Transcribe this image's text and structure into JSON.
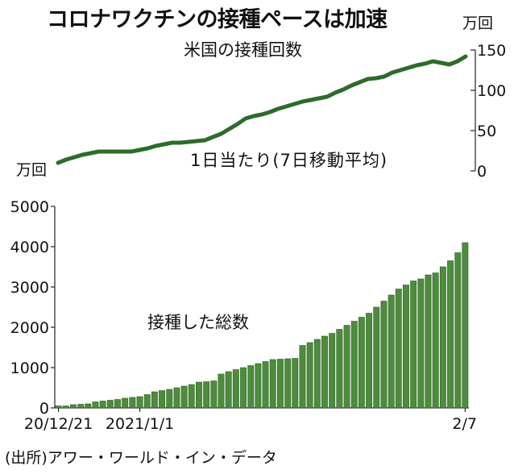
{
  "title": "コロナワクチンの接種ペースは加速",
  "source": "(出所)アワー・ワールド・イン・データ",
  "chart_data": [
    {
      "type": "line",
      "subtitle": "米国の接種回数",
      "note": "1日当たり(7日移動平均)",
      "unit_right": "万回",
      "unit_left": "万回",
      "ylim": [
        0,
        150
      ],
      "yticks": [
        0,
        50,
        100,
        150
      ],
      "color": "#2e6b2a",
      "x": [
        0,
        1,
        2,
        3,
        4,
        5,
        6,
        7,
        8,
        9,
        10,
        11,
        12,
        13,
        14,
        15,
        16,
        17,
        18,
        19,
        20,
        21,
        22,
        23,
        24,
        25,
        26,
        27,
        28,
        29,
        30,
        31,
        32,
        33,
        34,
        35,
        36,
        37,
        38,
        39,
        40,
        41,
        42,
        43,
        44,
        45,
        46,
        47,
        48,
        49,
        50
      ],
      "values": [
        10,
        14,
        17,
        20,
        22,
        24,
        24,
        24,
        24,
        24,
        26,
        28,
        31,
        33,
        35,
        35,
        36,
        37,
        38,
        42,
        46,
        52,
        58,
        65,
        68,
        70,
        73,
        77,
        80,
        83,
        86,
        88,
        90,
        92,
        97,
        101,
        106,
        110,
        114,
        115,
        117,
        122,
        125,
        128,
        131,
        133,
        136,
        134,
        132,
        136,
        142
      ]
    },
    {
      "type": "bar",
      "label": "接種した総数",
      "ylim": [
        0,
        5000
      ],
      "yticks": [
        0,
        1000,
        2000,
        3000,
        4000,
        5000
      ],
      "x_ticks": [
        "20/12/21",
        "2021/1/1",
        "2/7"
      ],
      "color": "#4e8c3d",
      "values": [
        50,
        50,
        80,
        90,
        100,
        150,
        170,
        190,
        210,
        240,
        260,
        280,
        330,
        400,
        430,
        460,
        500,
        540,
        580,
        640,
        650,
        670,
        840,
        900,
        950,
        1000,
        1050,
        1100,
        1150,
        1200,
        1210,
        1220,
        1230,
        1550,
        1620,
        1700,
        1780,
        1850,
        1950,
        2050,
        2150,
        2250,
        2350,
        2500,
        2650,
        2800,
        2950,
        3050,
        3150,
        3200,
        3300,
        3350,
        3500,
        3650,
        3850,
        4100
      ]
    }
  ]
}
